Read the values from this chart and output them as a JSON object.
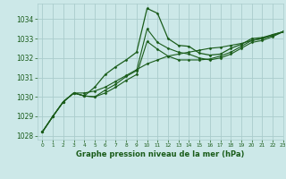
{
  "title": "Graphe pression niveau de la mer (hPa)",
  "background_color": "#cce8e8",
  "grid_color": "#aacccc",
  "line_color": "#1a5c1a",
  "xlim": [
    -0.5,
    23
  ],
  "ylim": [
    1027.8,
    1034.8
  ],
  "yticks": [
    1028,
    1029,
    1030,
    1031,
    1032,
    1033,
    1034
  ],
  "xticks": [
    0,
    1,
    2,
    3,
    4,
    5,
    6,
    7,
    8,
    9,
    10,
    11,
    12,
    13,
    14,
    15,
    16,
    17,
    18,
    19,
    20,
    21,
    22,
    23
  ],
  "series": [
    [
      1028.2,
      1029.0,
      1029.75,
      1030.2,
      1030.05,
      1030.5,
      1031.15,
      1031.55,
      1031.9,
      1032.3,
      1034.55,
      1034.3,
      1033.0,
      1032.65,
      1032.6,
      1032.25,
      1032.15,
      1032.2,
      1032.5,
      1032.7,
      1033.0,
      1033.05,
      1033.2,
      1033.35
    ],
    [
      1028.2,
      1029.0,
      1029.75,
      1030.2,
      1030.05,
      1030.0,
      1030.35,
      1030.65,
      1031.05,
      1031.35,
      1033.5,
      1032.8,
      1032.5,
      1032.3,
      1032.2,
      1032.0,
      1031.9,
      1032.0,
      1032.2,
      1032.5,
      1032.8,
      1032.9,
      1033.1,
      1033.35
    ],
    [
      1028.2,
      1029.0,
      1029.75,
      1030.2,
      1030.05,
      1030.0,
      1030.2,
      1030.5,
      1030.85,
      1031.15,
      1032.85,
      1032.45,
      1032.1,
      1031.9,
      1031.9,
      1031.9,
      1031.95,
      1032.1,
      1032.3,
      1032.6,
      1032.9,
      1033.0,
      1033.15,
      1033.35
    ],
    [
      1028.2,
      1029.0,
      1029.75,
      1030.2,
      1030.2,
      1030.3,
      1030.5,
      1030.8,
      1031.1,
      1031.4,
      1031.7,
      1031.9,
      1032.1,
      1032.2,
      1032.3,
      1032.4,
      1032.5,
      1032.55,
      1032.65,
      1032.75,
      1032.9,
      1033.0,
      1033.2,
      1033.35
    ]
  ],
  "xlabel_fontsize": 6.0,
  "ytick_fontsize": 5.5,
  "xtick_fontsize": 4.2,
  "linewidth": 0.8,
  "markersize": 1.5
}
